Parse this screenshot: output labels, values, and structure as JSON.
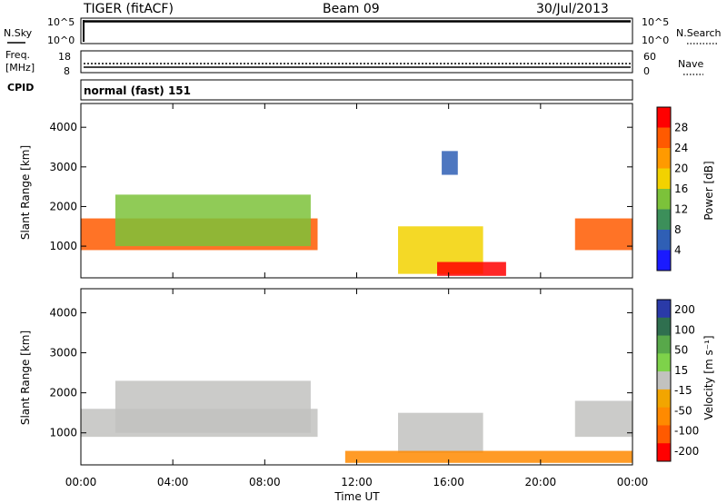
{
  "header": {
    "station": "TIGER (fitACF)",
    "beam": "Beam 09",
    "date": "30/Jul/2013"
  },
  "panels": {
    "nsky": {
      "label": "N.Sky",
      "right_label": "N.Search",
      "left_ticks": [
        "10^5",
        "10^0"
      ],
      "right_ticks": [
        "10^5",
        "10^0"
      ]
    },
    "freq": {
      "label_line1": "Freq.",
      "label_line2": "[MHz]",
      "left_ticks": [
        "18",
        "8"
      ],
      "right_label": "Nave",
      "right_ticks": [
        "60",
        "0"
      ]
    },
    "cpid": {
      "label": "CPID",
      "value": "normal (fast) 151"
    }
  },
  "colors": {
    "power_scale": [
      "#1a1aff",
      "#2f5fb5",
      "#3c8f5a",
      "#7cc23a",
      "#f2d200",
      "#ff9a00",
      "#ff5a00",
      "#ff0000"
    ],
    "velocity_scale": [
      "#2a3aa8",
      "#2f6f4f",
      "#58a84a",
      "#7ed24a",
      "#c2c2bf",
      "#f2a500",
      "#ff8a00",
      "#ff5a00",
      "#ff0000"
    ]
  },
  "chart_data": [
    {
      "type": "heatmap",
      "name_axis": "power",
      "ylabel": "Slant Range [km]",
      "yticks": [
        1000,
        2000,
        3000,
        4000
      ],
      "ylim": [
        200,
        4600
      ],
      "xlim_hours": [
        0,
        24
      ],
      "colorbar_label": "Power [dB]",
      "colorbar_ticks": [
        "4",
        "8",
        "12",
        "16",
        "20",
        "24",
        "28"
      ],
      "regions": [
        {
          "t0": 0.0,
          "t1": 10.3,
          "r0": 900,
          "r1": 1700,
          "level": 6
        },
        {
          "t0": 1.5,
          "t1": 10.0,
          "r0": 1000,
          "r1": 2300,
          "level": 3
        },
        {
          "t0": 13.8,
          "t1": 17.5,
          "r0": 300,
          "r1": 1500,
          "level": 4
        },
        {
          "t0": 15.5,
          "t1": 18.5,
          "r0": 250,
          "r1": 600,
          "level": 7
        },
        {
          "t0": 21.5,
          "t1": 24.0,
          "r0": 900,
          "r1": 1700,
          "level": 6
        },
        {
          "t0": 15.7,
          "t1": 16.4,
          "r0": 2800,
          "r1": 3400,
          "level": 1
        }
      ]
    },
    {
      "type": "heatmap",
      "name_axis": "velocity",
      "ylabel": "Slant Range [km]",
      "yticks": [
        1000,
        2000,
        3000,
        4000
      ],
      "ylim": [
        200,
        4600
      ],
      "xlim_hours": [
        0,
        24
      ],
      "xticks": [
        "00:00",
        "04:00",
        "08:00",
        "12:00",
        "16:00",
        "20:00",
        "00:00"
      ],
      "xlabel": "Time UT",
      "colorbar_label": "Velocity [m s⁻¹]",
      "colorbar_ticks": [
        "200",
        "100",
        "50",
        "15",
        "-15",
        "-50",
        "-100",
        "-200"
      ],
      "regions": [
        {
          "t0": 0.0,
          "t1": 10.3,
          "r0": 900,
          "r1": 1600,
          "level": 4
        },
        {
          "t0": 1.5,
          "t1": 10.0,
          "r0": 1000,
          "r1": 2300,
          "level": 4
        },
        {
          "t0": 13.8,
          "t1": 17.5,
          "r0": 500,
          "r1": 1500,
          "level": 4
        },
        {
          "t0": 11.5,
          "t1": 24.0,
          "r0": 250,
          "r1": 550,
          "level": 6
        },
        {
          "t0": 21.5,
          "t1": 24.0,
          "r0": 900,
          "r1": 1800,
          "level": 4
        }
      ]
    }
  ]
}
